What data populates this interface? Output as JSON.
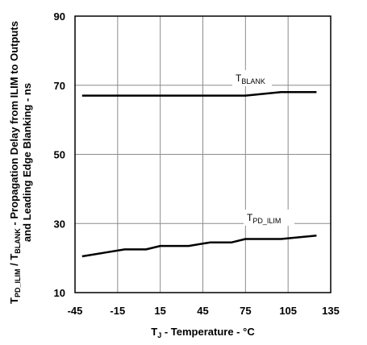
{
  "chart_data": {
    "type": "line",
    "xlabel": {
      "main": "T",
      "sub": "J",
      "rest": " - Temperature - °C"
    },
    "ylabel": {
      "line1": [
        {
          "text": "T",
          "sub": false
        },
        {
          "text": "PD_ILIM",
          "sub": true
        },
        {
          "text": " / T",
          "sub": false
        },
        {
          "text": "BLANK",
          "sub": true
        },
        {
          "text": " - Propagation Delay from ILIM to Outputs",
          "sub": false
        }
      ],
      "line2": "and Leading Edge Blanking - ns"
    },
    "xlim": [
      -45,
      135
    ],
    "ylim": [
      10,
      90
    ],
    "x_ticks": [
      -45,
      -15,
      15,
      45,
      75,
      105,
      135
    ],
    "y_ticks": [
      10,
      30,
      50,
      70,
      90
    ],
    "x_tick_labels": [
      "-45",
      "-15",
      "15",
      "45",
      "75",
      "105",
      "135"
    ],
    "y_tick_labels": [
      "10",
      "30",
      "50",
      "70",
      "90"
    ],
    "grid": true,
    "series": [
      {
        "name": "T_BLANK",
        "label_main": "T",
        "label_sub": "BLANK",
        "color": "#000000",
        "points": [
          [
            -40,
            67
          ],
          [
            -15,
            67
          ],
          [
            15,
            67
          ],
          [
            45,
            67
          ],
          [
            75,
            67
          ],
          [
            100,
            68
          ],
          [
            125,
            68
          ]
        ]
      },
      {
        "name": "T_PD_ILIM",
        "label_main": "T",
        "label_sub": "PD_ILIM",
        "color": "#000000",
        "points": [
          [
            -40,
            20.5
          ],
          [
            -25,
            21.5
          ],
          [
            -10,
            22.5
          ],
          [
            5,
            22.5
          ],
          [
            15,
            23.5
          ],
          [
            35,
            23.5
          ],
          [
            50,
            24.5
          ],
          [
            65,
            24.5
          ],
          [
            75,
            25.5
          ],
          [
            85,
            25.5
          ],
          [
            100,
            25.5
          ],
          [
            125,
            26.5
          ]
        ]
      }
    ]
  }
}
